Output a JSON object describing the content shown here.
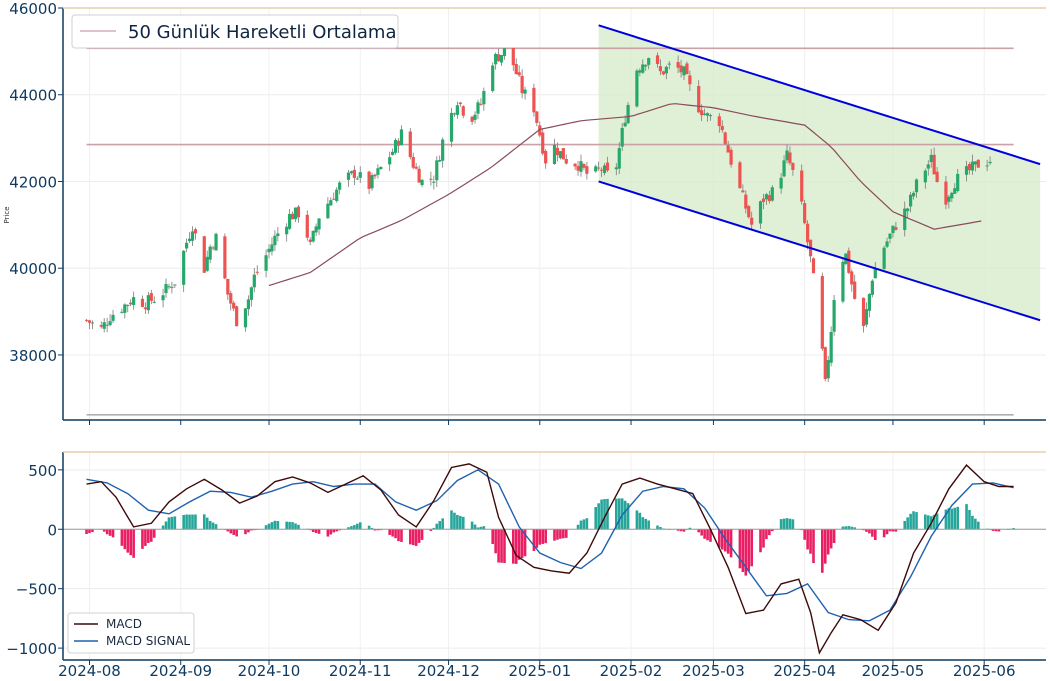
{
  "chart_data": [
    {
      "type": "candlestick",
      "ylabel": "Price",
      "ylim": [
        36500,
        46000
      ],
      "yticks": [
        38000,
        40000,
        42000,
        44000,
        46000
      ],
      "ytick_labels": [
        "38000",
        "40000",
        "42000",
        "44000",
        "46000"
      ],
      "x_range": [
        "2024-07-23",
        "2025-06-22"
      ],
      "colors": {
        "up": "#26a86a",
        "down": "#ef5350",
        "wick": "#7a7a7a"
      },
      "legend": {
        "placement": "top-left",
        "entries": [
          {
            "label": "50 Günlük Hareketli Ortalama",
            "color": "#c9a1a6"
          }
        ]
      },
      "horizontal_levels": [
        {
          "value": 45070,
          "color": "#c9a1a6"
        },
        {
          "value": 42850,
          "color": "#c9a1a6"
        },
        {
          "value": 36620,
          "color": "#b0b0b0"
        }
      ],
      "channel": {
        "upper": {
          "from": [
            "2025-01-21",
            45600
          ],
          "to": [
            "2025-06-20",
            42400
          ]
        },
        "lower": {
          "from": [
            "2025-01-21",
            42000
          ],
          "to": [
            "2025-06-20",
            38800
          ]
        },
        "line_color": "#0000dd",
        "fill_color": "#d5ebc9"
      },
      "ohlc_keypoints": [
        [
          "2024-07-31",
          38800
        ],
        [
          "2024-08-05",
          38600
        ],
        [
          "2024-08-08",
          38900
        ],
        [
          "2024-08-12",
          39100
        ],
        [
          "2024-08-16",
          39300
        ],
        [
          "2024-08-20",
          39200
        ],
        [
          "2024-08-23",
          39300
        ],
        [
          "2024-08-27",
          39500
        ],
        [
          "2024-08-30",
          39700
        ],
        [
          "2024-09-03",
          40600
        ],
        [
          "2024-09-05",
          41000
        ],
        [
          "2024-09-09",
          40000
        ],
        [
          "2024-09-11",
          40500
        ],
        [
          "2024-09-13",
          40700
        ],
        [
          "2024-09-17",
          39400
        ],
        [
          "2024-09-20",
          38800
        ],
        [
          "2024-09-24",
          39300
        ],
        [
          "2024-09-26",
          39800
        ],
        [
          "2024-09-30",
          40300
        ],
        [
          "2024-10-03",
          40700
        ],
        [
          "2024-10-08",
          41200
        ],
        [
          "2024-10-12",
          41300
        ],
        [
          "2024-10-15",
          40500
        ],
        [
          "2024-10-18",
          41200
        ],
        [
          "2024-10-22",
          41600
        ],
        [
          "2024-10-25",
          41900
        ],
        [
          "2024-10-30",
          42200
        ],
        [
          "2024-11-04",
          41900
        ],
        [
          "2024-11-08",
          42300
        ],
        [
          "2024-11-12",
          42700
        ],
        [
          "2024-11-15",
          43100
        ],
        [
          "2024-11-19",
          42400
        ],
        [
          "2024-11-22",
          42000
        ],
        [
          "2024-11-26",
          42100
        ],
        [
          "2024-11-30",
          43200
        ],
        [
          "2024-12-04",
          43900
        ],
        [
          "2024-12-08",
          43400
        ],
        [
          "2024-12-12",
          43800
        ],
        [
          "2024-12-16",
          44800
        ],
        [
          "2024-12-20",
          45000
        ],
        [
          "2024-12-23",
          44700
        ],
        [
          "2024-12-26",
          44100
        ],
        [
          "2024-12-30",
          43700
        ],
        [
          "2025-01-03",
          42500
        ],
        [
          "2025-01-06",
          42800
        ],
        [
          "2025-01-10",
          42500
        ],
        [
          "2025-01-14",
          42400
        ],
        [
          "2025-01-18",
          42100
        ],
        [
          "2025-01-22",
          42300
        ],
        [
          "2025-01-26",
          42000
        ],
        [
          "2025-01-30",
          43500
        ],
        [
          "2025-02-03",
          44600
        ],
        [
          "2025-02-07",
          44900
        ],
        [
          "2025-02-11",
          44500
        ],
        [
          "2025-02-15",
          44700
        ],
        [
          "2025-02-19",
          44500
        ],
        [
          "2025-02-23",
          43800
        ],
        [
          "2025-02-27",
          43500
        ],
        [
          "2025-03-03",
          43400
        ],
        [
          "2025-03-06",
          42700
        ],
        [
          "2025-03-10",
          41800
        ],
        [
          "2025-03-14",
          41000
        ],
        [
          "2025-03-18",
          41600
        ],
        [
          "2025-03-22",
          41800
        ],
        [
          "2025-03-26",
          42600
        ],
        [
          "2025-03-30",
          41800
        ],
        [
          "2025-04-03",
          40200
        ],
        [
          "2025-04-06",
          38800
        ],
        [
          "2025-04-08",
          37300
        ],
        [
          "2025-04-10",
          38600
        ],
        [
          "2025-04-12",
          40100
        ],
        [
          "2025-04-15",
          40300
        ],
        [
          "2025-04-18",
          39300
        ],
        [
          "2025-04-21",
          38600
        ],
        [
          "2025-04-24",
          39800
        ],
        [
          "2025-04-28",
          40500
        ],
        [
          "2025-05-02",
          41000
        ],
        [
          "2025-05-06",
          41400
        ],
        [
          "2025-05-10",
          42100
        ],
        [
          "2025-05-14",
          42500
        ],
        [
          "2025-05-18",
          41500
        ],
        [
          "2025-05-22",
          42000
        ],
        [
          "2025-05-26",
          42200
        ],
        [
          "2025-05-30",
          42400
        ],
        [
          "2025-06-03",
          42500
        ]
      ],
      "ma50": [
        [
          "2024-10-01",
          39600
        ],
        [
          "2024-10-15",
          39900
        ],
        [
          "2024-11-01",
          40700
        ],
        [
          "2024-11-15",
          41100
        ],
        [
          "2024-12-01",
          41700
        ],
        [
          "2024-12-15",
          42300
        ],
        [
          "2025-01-01",
          43200
        ],
        [
          "2025-01-15",
          43400
        ],
        [
          "2025-02-01",
          43500
        ],
        [
          "2025-02-15",
          43800
        ],
        [
          "2025-03-01",
          43700
        ],
        [
          "2025-03-15",
          43500
        ],
        [
          "2025-04-01",
          43300
        ],
        [
          "2025-04-10",
          42800
        ],
        [
          "2025-04-20",
          42000
        ],
        [
          "2025-05-01",
          41300
        ],
        [
          "2025-05-15",
          40900
        ],
        [
          "2025-06-01",
          41100
        ]
      ]
    },
    {
      "type": "line",
      "ylim": [
        -1100,
        650
      ],
      "yticks": [
        -1000,
        -500,
        0,
        500
      ],
      "ytick_labels": [
        "−1000",
        "−500",
        "0",
        "500"
      ],
      "x_range": [
        "2024-07-23",
        "2025-06-22"
      ],
      "xtick_labels": [
        "2024-08",
        "2024-09",
        "2024-10",
        "2024-11",
        "2024-12",
        "2025-01",
        "2025-02",
        "2025-03",
        "2025-04",
        "2025-05",
        "2025-06"
      ],
      "xtick_dates": [
        "2024-08-01",
        "2024-09-01",
        "2024-10-01",
        "2024-11-01",
        "2024-12-01",
        "2025-01-01",
        "2025-02-01",
        "2025-03-01",
        "2025-04-01",
        "2025-05-01",
        "2025-06-01"
      ],
      "legend": {
        "placement": "bottom-left"
      },
      "series": [
        {
          "name": "MACD",
          "color": "#3d0a0a",
          "points": [
            [
              "2024-07-31",
              380
            ],
            [
              "2024-08-05",
              400
            ],
            [
              "2024-08-10",
              270
            ],
            [
              "2024-08-16",
              20
            ],
            [
              "2024-08-22",
              50
            ],
            [
              "2024-08-28",
              230
            ],
            [
              "2024-09-03",
              340
            ],
            [
              "2024-09-09",
              420
            ],
            [
              "2024-09-15",
              330
            ],
            [
              "2024-09-21",
              220
            ],
            [
              "2024-09-27",
              280
            ],
            [
              "2024-10-03",
              400
            ],
            [
              "2024-10-09",
              440
            ],
            [
              "2024-10-15",
              390
            ],
            [
              "2024-10-21",
              310
            ],
            [
              "2024-10-27",
              380
            ],
            [
              "2024-11-02",
              450
            ],
            [
              "2024-11-08",
              330
            ],
            [
              "2024-11-14",
              120
            ],
            [
              "2024-11-20",
              20
            ],
            [
              "2024-11-26",
              240
            ],
            [
              "2024-12-02",
              520
            ],
            [
              "2024-12-08",
              550
            ],
            [
              "2024-12-14",
              480
            ],
            [
              "2024-12-18",
              100
            ],
            [
              "2024-12-24",
              -220
            ],
            [
              "2024-12-30",
              -320
            ],
            [
              "2025-01-05",
              -350
            ],
            [
              "2025-01-11",
              -370
            ],
            [
              "2025-01-17",
              -200
            ],
            [
              "2025-01-23",
              100
            ],
            [
              "2025-01-29",
              380
            ],
            [
              "2025-02-04",
              430
            ],
            [
              "2025-02-10",
              380
            ],
            [
              "2025-02-16",
              340
            ],
            [
              "2025-02-22",
              300
            ],
            [
              "2025-02-28",
              0
            ],
            [
              "2025-03-06",
              -320
            ],
            [
              "2025-03-12",
              -710
            ],
            [
              "2025-03-18",
              -680
            ],
            [
              "2025-03-24",
              -460
            ],
            [
              "2025-03-30",
              -420
            ],
            [
              "2025-04-03",
              -700
            ],
            [
              "2025-04-06",
              -1040
            ],
            [
              "2025-04-10",
              -870
            ],
            [
              "2025-04-14",
              -720
            ],
            [
              "2025-04-20",
              -760
            ],
            [
              "2025-04-26",
              -850
            ],
            [
              "2025-05-02",
              -620
            ],
            [
              "2025-05-08",
              -200
            ],
            [
              "2025-05-14",
              50
            ],
            [
              "2025-05-20",
              340
            ],
            [
              "2025-05-26",
              540
            ],
            [
              "2025-06-01",
              400
            ],
            [
              "2025-06-06",
              360
            ],
            [
              "2025-06-11",
              360
            ]
          ]
        },
        {
          "name": "MACD SIGNAL",
          "color": "#1f62b0",
          "points": [
            [
              "2024-07-31",
              420
            ],
            [
              "2024-08-07",
              390
            ],
            [
              "2024-08-14",
              300
            ],
            [
              "2024-08-21",
              160
            ],
            [
              "2024-08-28",
              130
            ],
            [
              "2024-09-04",
              230
            ],
            [
              "2024-09-11",
              320
            ],
            [
              "2024-09-18",
              310
            ],
            [
              "2024-09-25",
              270
            ],
            [
              "2024-10-02",
              320
            ],
            [
              "2024-10-09",
              380
            ],
            [
              "2024-10-16",
              400
            ],
            [
              "2024-10-23",
              360
            ],
            [
              "2024-10-30",
              380
            ],
            [
              "2024-11-06",
              380
            ],
            [
              "2024-11-13",
              230
            ],
            [
              "2024-11-20",
              160
            ],
            [
              "2024-11-27",
              240
            ],
            [
              "2024-12-04",
              410
            ],
            [
              "2024-12-11",
              500
            ],
            [
              "2024-12-18",
              380
            ],
            [
              "2024-12-25",
              20
            ],
            [
              "2025-01-01",
              -200
            ],
            [
              "2025-01-08",
              -280
            ],
            [
              "2025-01-15",
              -330
            ],
            [
              "2025-01-22",
              -200
            ],
            [
              "2025-01-29",
              120
            ],
            [
              "2025-02-05",
              320
            ],
            [
              "2025-02-12",
              360
            ],
            [
              "2025-02-19",
              340
            ],
            [
              "2025-02-26",
              180
            ],
            [
              "2025-03-05",
              -80
            ],
            [
              "2025-03-12",
              -320
            ],
            [
              "2025-03-19",
              -560
            ],
            [
              "2025-03-26",
              -540
            ],
            [
              "2025-04-02",
              -460
            ],
            [
              "2025-04-09",
              -700
            ],
            [
              "2025-04-16",
              -760
            ],
            [
              "2025-04-23",
              -770
            ],
            [
              "2025-04-30",
              -680
            ],
            [
              "2025-05-07",
              -400
            ],
            [
              "2025-05-14",
              -60
            ],
            [
              "2025-05-21",
              200
            ],
            [
              "2025-05-28",
              380
            ],
            [
              "2025-06-04",
              390
            ],
            [
              "2025-06-11",
              350
            ]
          ]
        }
      ],
      "histogram_colors": {
        "positive": "#26a69a",
        "negative": "#e91e63"
      }
    }
  ]
}
